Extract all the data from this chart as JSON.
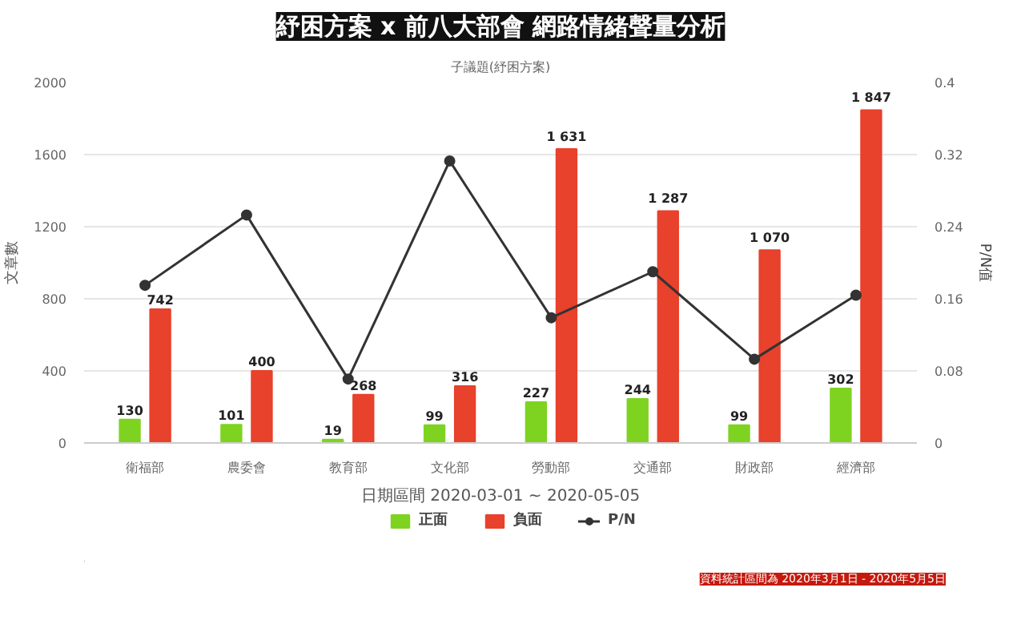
{
  "chart_data": {
    "type": "bar",
    "title": "紓困方案 x 前八大部會 網路情緒聲量分析",
    "subtitle": "子議題(紓困方案)",
    "xlabel": "日期區間 2020-03-01 ~ 2020-05-05",
    "ylabel": "文章數",
    "y2label": "P/N值",
    "categories": [
      "衛福部",
      "農委會",
      "教育部",
      "文化部",
      "勞動部",
      "交通部",
      "財政部",
      "經濟部"
    ],
    "series": [
      {
        "name": "正面",
        "color": "#7ed321",
        "values": [
          130,
          101,
          19,
          99,
          227,
          244,
          99,
          302
        ],
        "value_labels": [
          "130",
          "101",
          "19",
          "99",
          "227",
          "244",
          "99",
          "302"
        ]
      },
      {
        "name": "負面",
        "color": "#e8412c",
        "values": [
          742,
          400,
          268,
          316,
          1631,
          1287,
          1070,
          1847
        ],
        "value_labels": [
          "742",
          "400",
          "268",
          "316",
          "1 631",
          "1 287",
          "1 070",
          "1 847"
        ]
      },
      {
        "name": "P/N",
        "type": "line",
        "axis": "y2",
        "color": "#333333",
        "marker": "circle",
        "values": [
          0.175,
          0.253,
          0.071,
          0.313,
          0.139,
          0.19,
          0.093,
          0.164
        ]
      }
    ],
    "ylim": [
      0,
      2000
    ],
    "yticks": [
      0,
      400,
      800,
      1200,
      1600,
      2000
    ],
    "y2lim": [
      0,
      0.4
    ],
    "y2ticks": [
      0,
      0.08,
      0.16,
      0.24,
      0.32,
      0.4
    ],
    "grid": "y",
    "legend": "bottom",
    "annotations": [
      "資料統計區間為 2020年3月1日 - 2020年5月5日"
    ]
  }
}
